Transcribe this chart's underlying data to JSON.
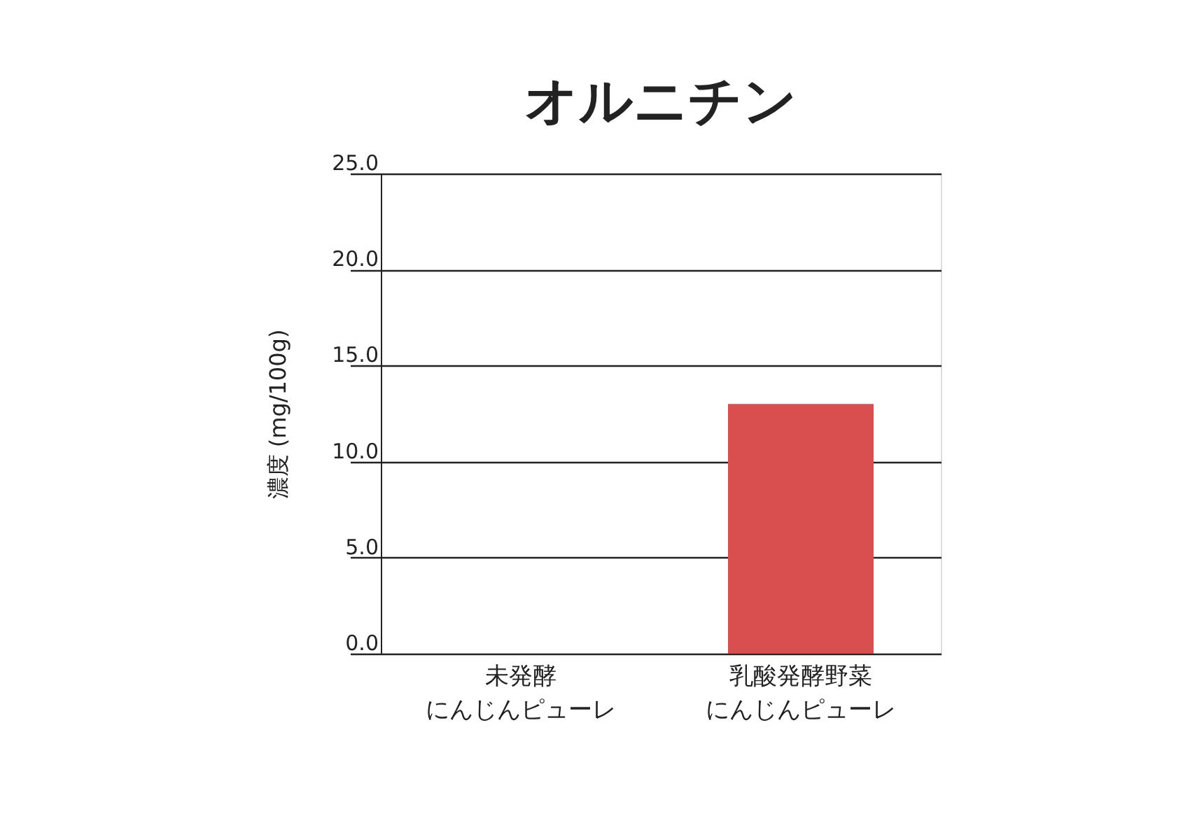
{
  "chart_data": {
    "type": "bar",
    "title": "オルニチン",
    "ylabel": "濃度 (mg/100g)",
    "categories": [
      "未発酵にんじんピューレ",
      "乳酸発酵野菜にんじんピューレ"
    ],
    "values": [
      0.0,
      13.0
    ],
    "color": "#d94f4f",
    "ylim": [
      0,
      25
    ],
    "yticks": [
      {
        "value": 0,
        "label": "0.0"
      },
      {
        "value": 5,
        "label": "5.0"
      },
      {
        "value": 10,
        "label": "10.0"
      },
      {
        "value": 15,
        "label": "15.0"
      },
      {
        "value": 20,
        "label": "20.0"
      },
      {
        "value": 25,
        "label": "25.0"
      }
    ],
    "grid": "y",
    "legend": false
  }
}
